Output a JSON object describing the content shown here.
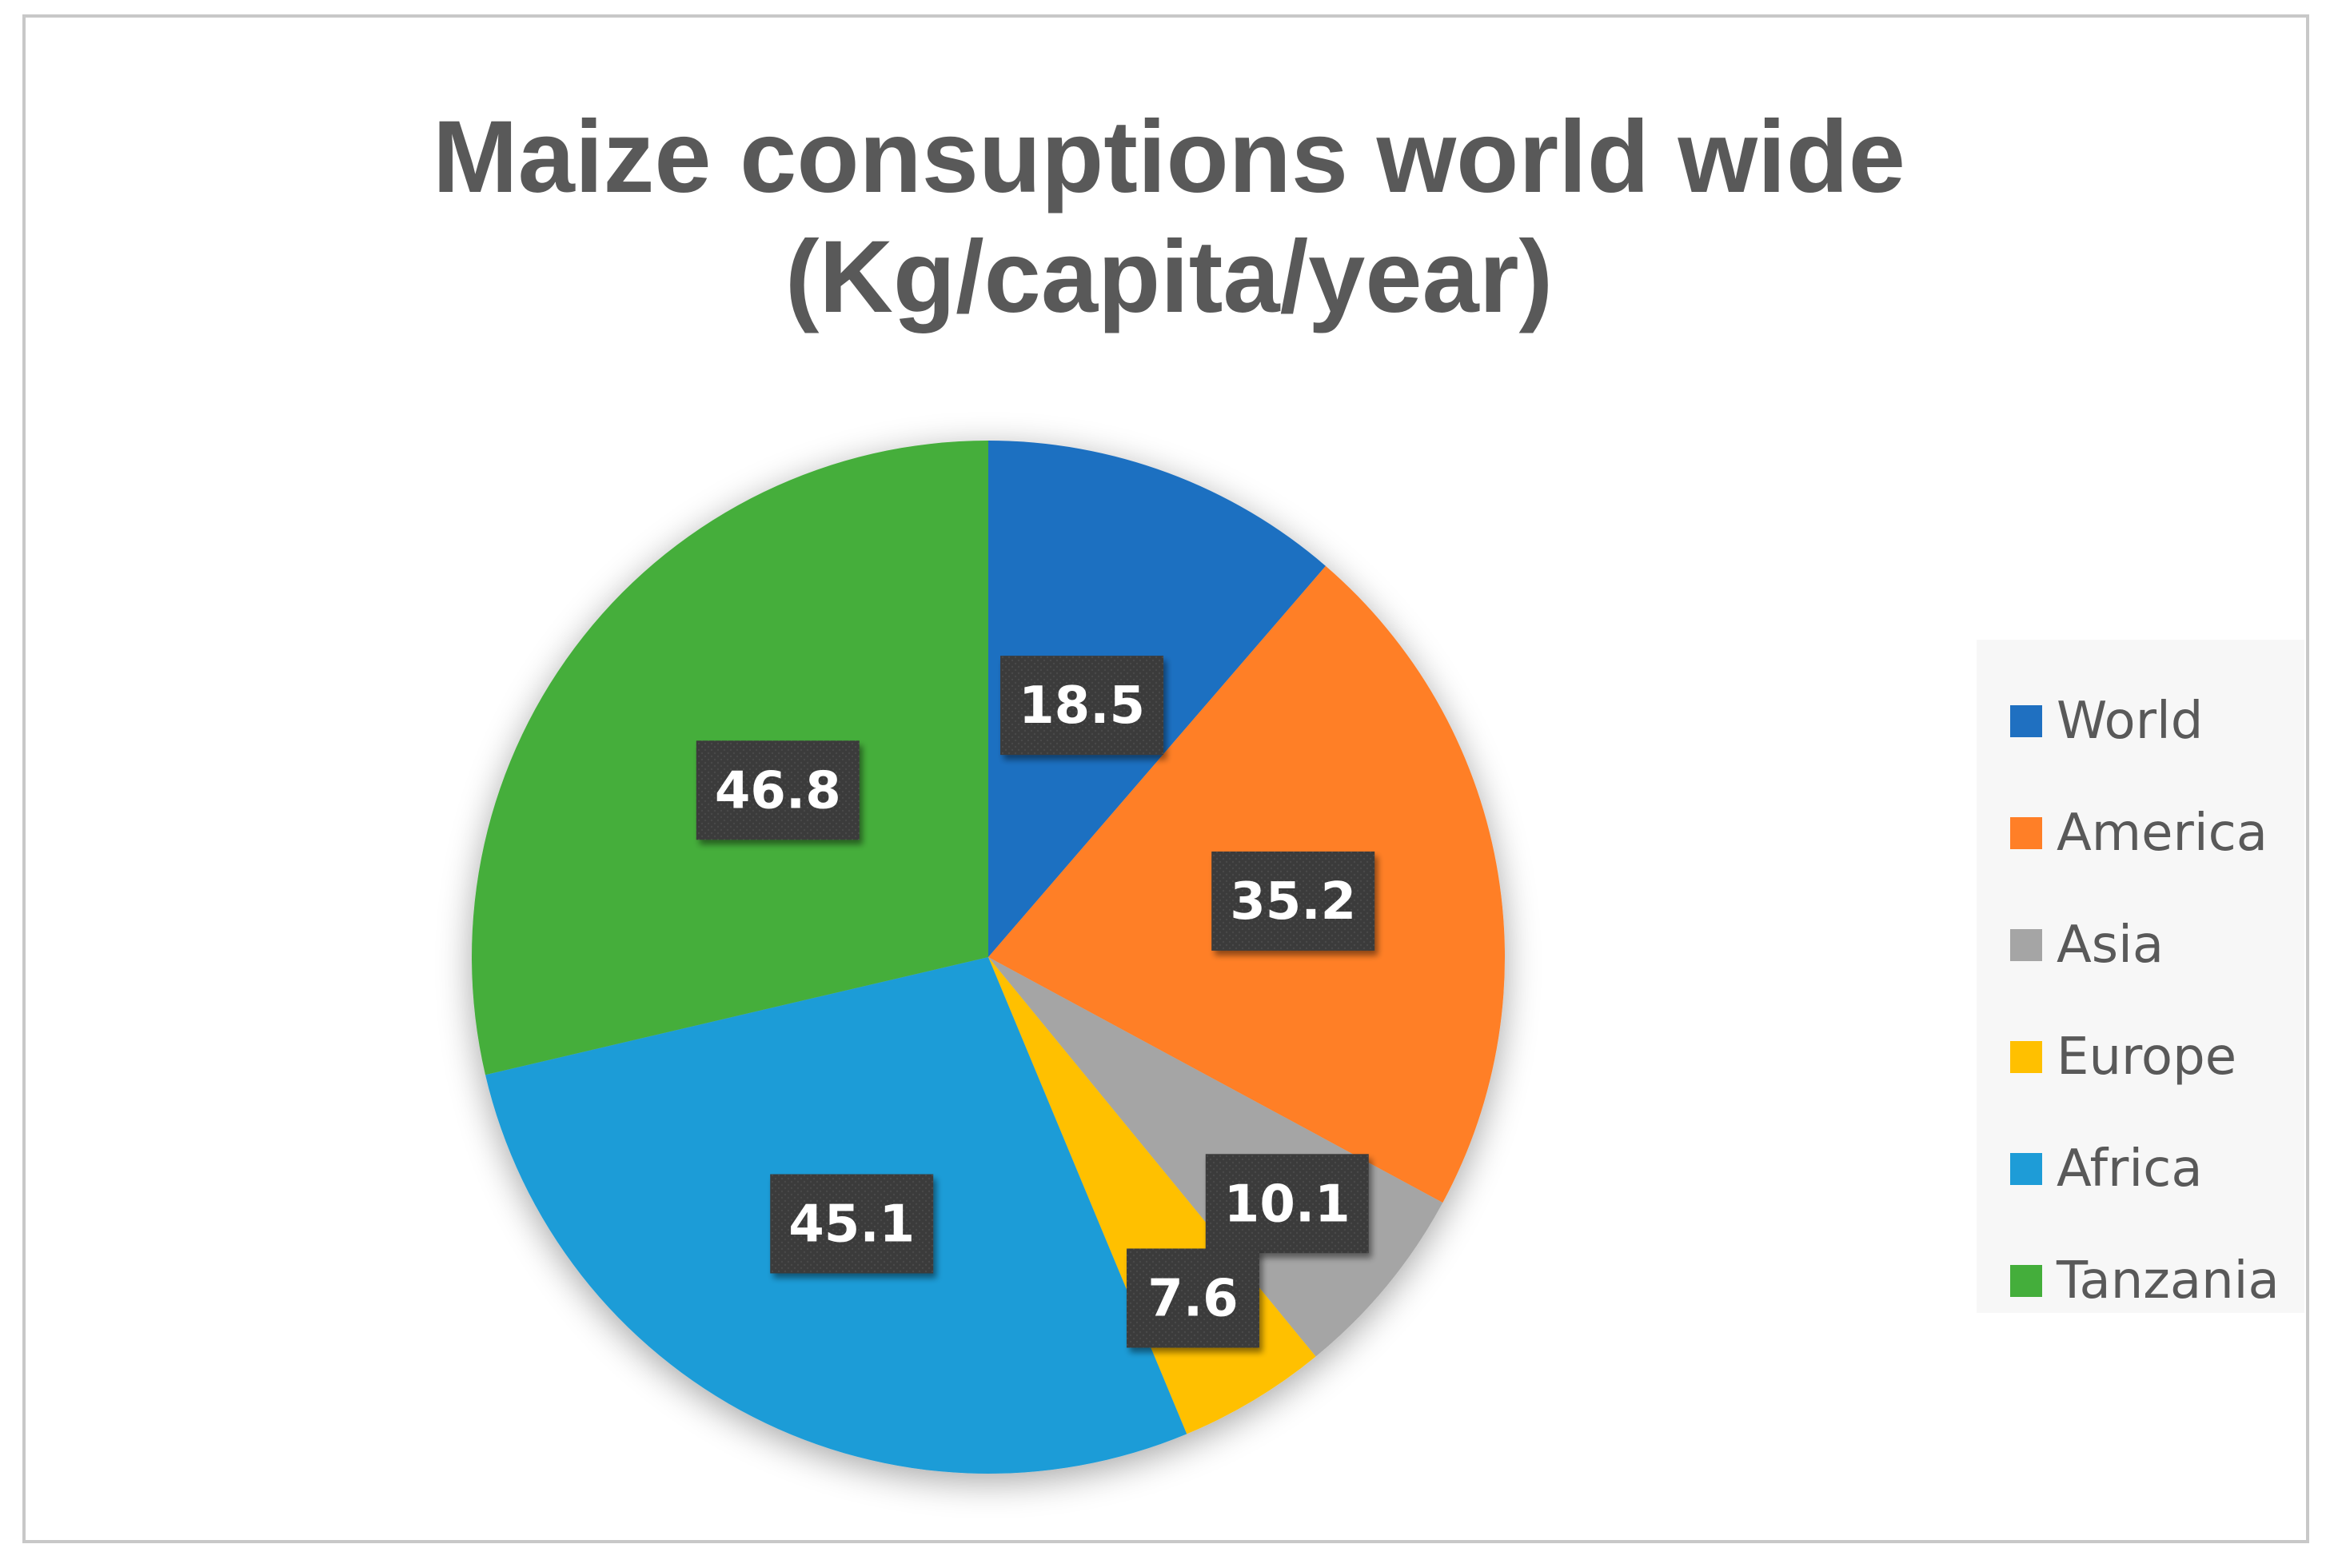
{
  "chart_data": {
    "type": "pie",
    "title": "Maize consuptions world wide (Kg/capita/year)",
    "title_lines": [
      "Maize consuptions world wide",
      "(Kg/capita/year)"
    ],
    "categories": [
      "World",
      "America",
      "Asia",
      "Europe",
      "Africa",
      "Tanzania"
    ],
    "values": [
      18.5,
      35.2,
      10.1,
      7.6,
      45.1,
      46.8
    ],
    "data_labels": [
      "18.5",
      "35.2",
      "10.1",
      "7.6",
      "45.1",
      "46.8"
    ],
    "colors": [
      "#1F70C1",
      "#FF7F27",
      "#A5A5A5",
      "#FFC000",
      "#1E9CD7",
      "#44AE3B"
    ],
    "legend": {
      "placement": "right",
      "entries": [
        "World",
        "America",
        "Asia",
        "Europe",
        "Africa",
        "Tanzania"
      ]
    },
    "data_label_style": {
      "background": "#3A3A3A",
      "text_color": "#FFFFFF"
    },
    "start_angle": "12 o'clock",
    "direction": "clockwise"
  }
}
